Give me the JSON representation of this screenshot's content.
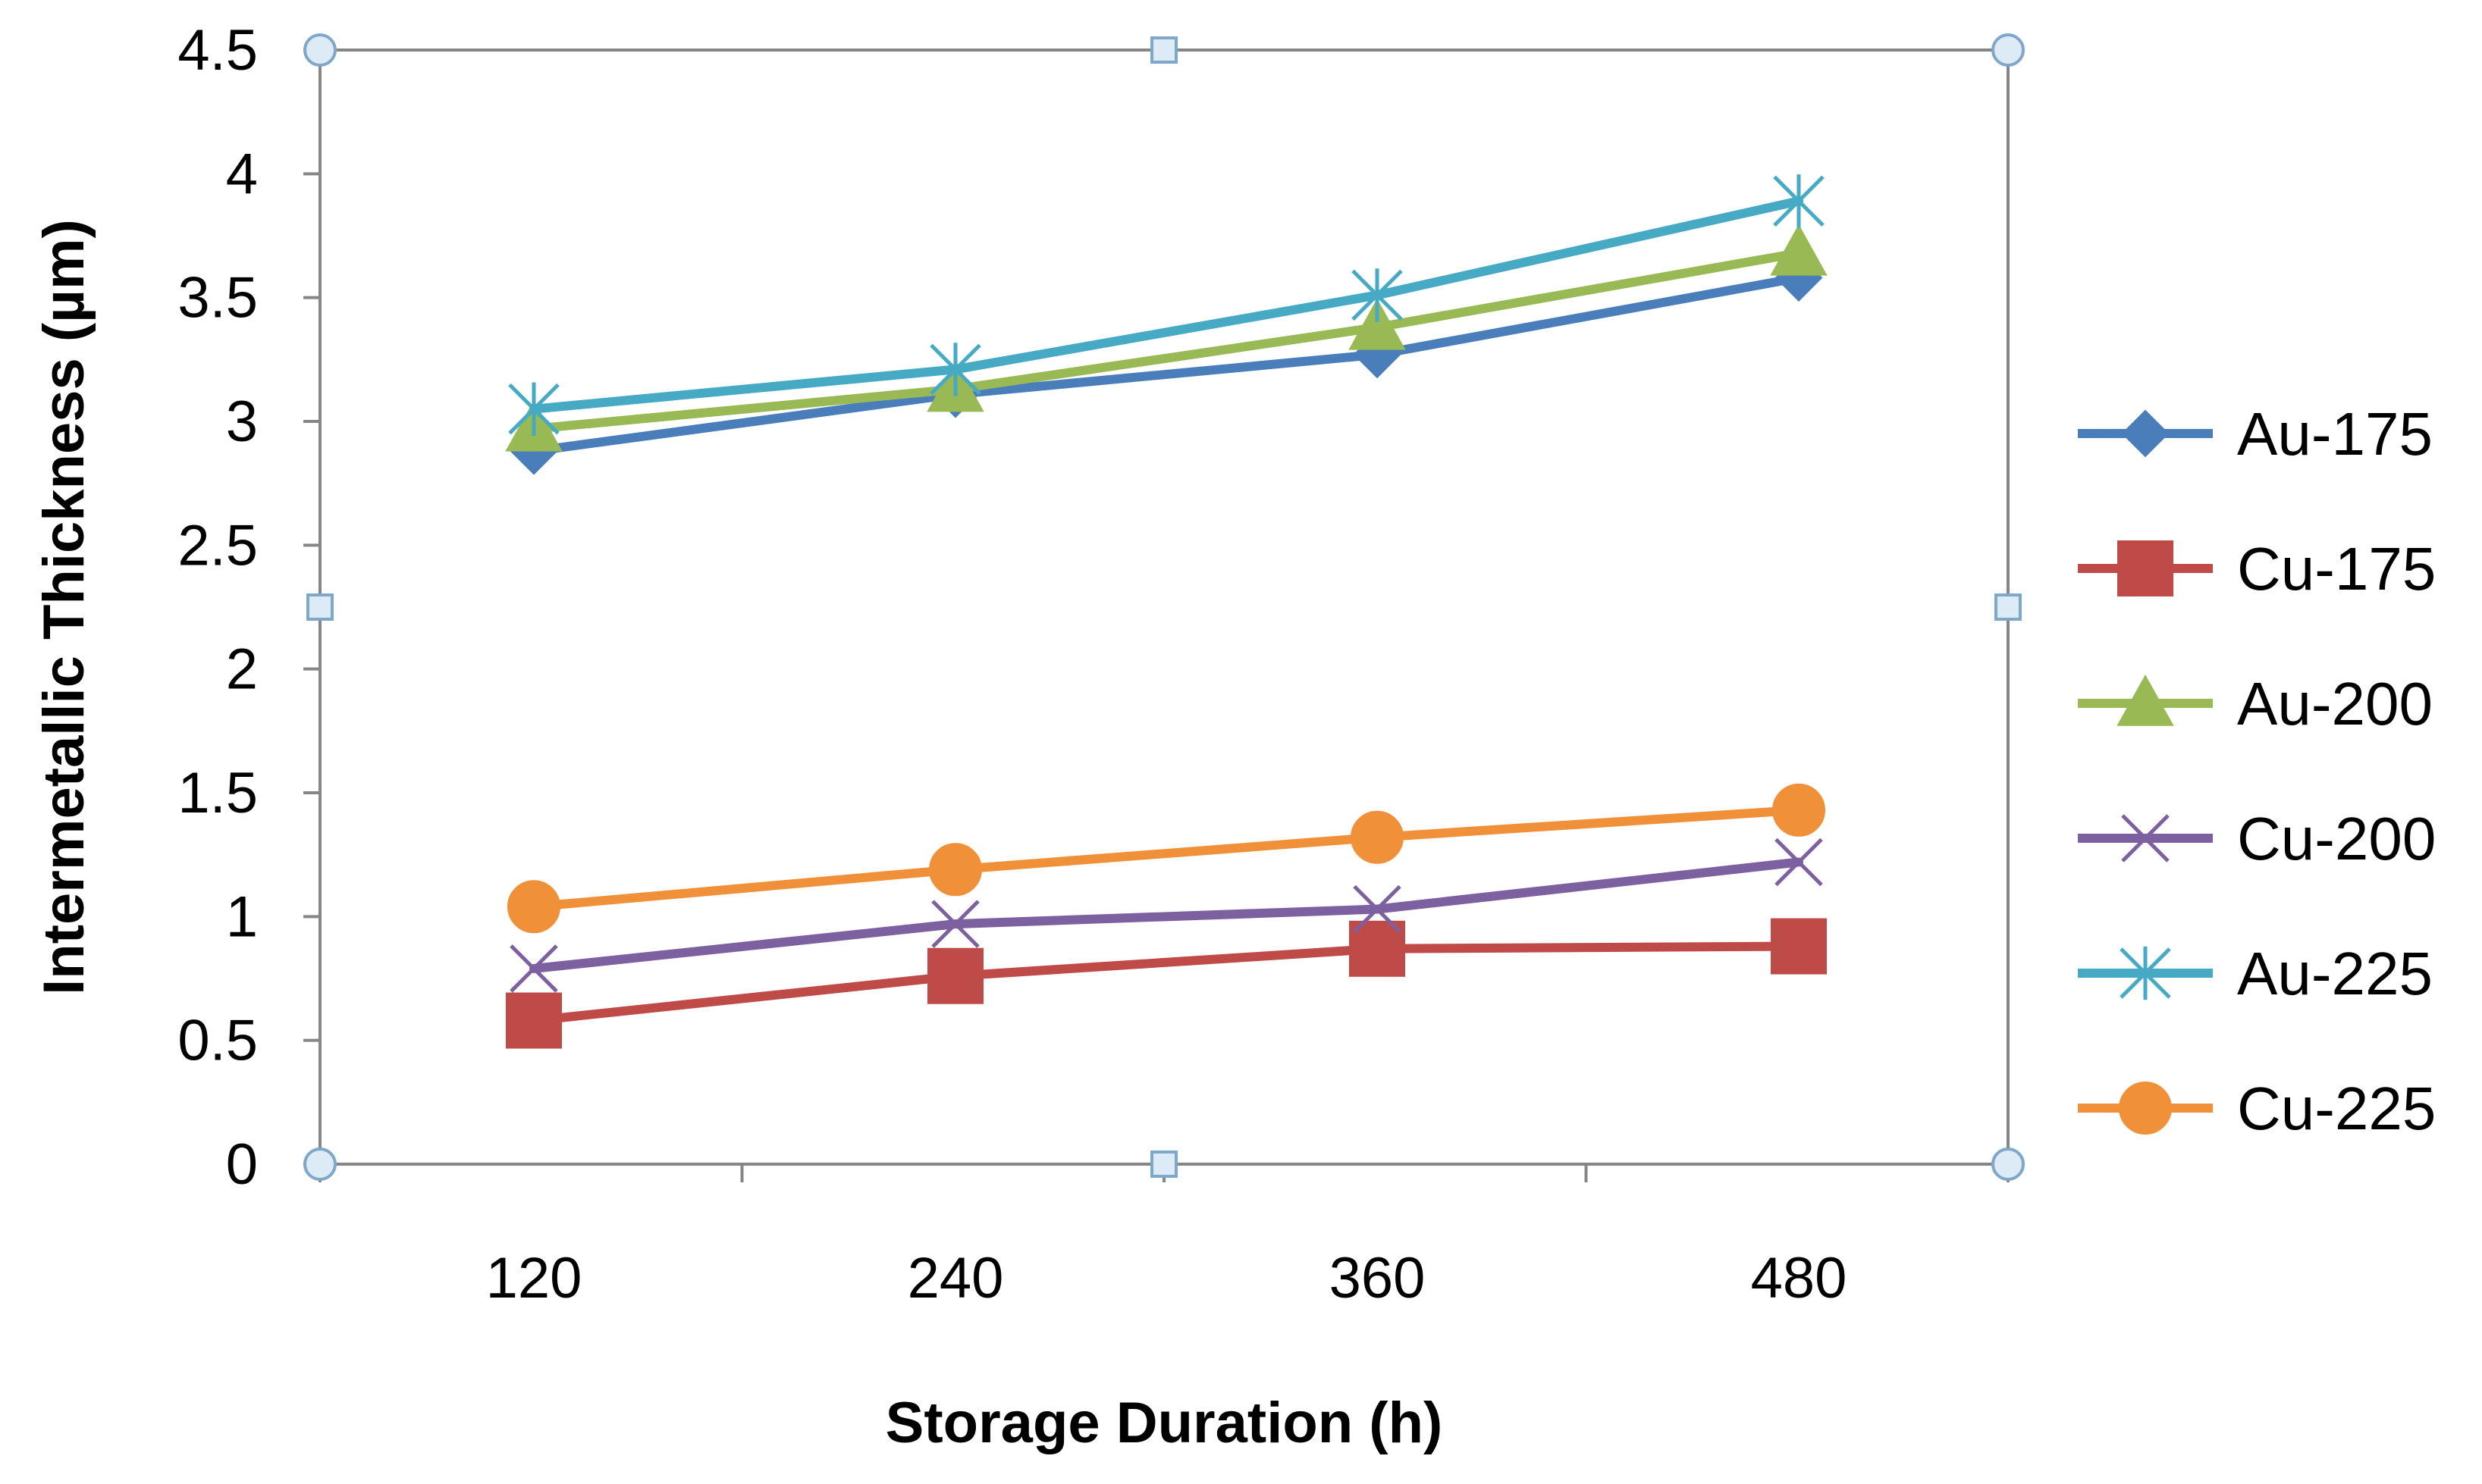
{
  "chart_data": {
    "type": "line",
    "title": "",
    "xlabel": "Storage Duration (h)",
    "ylabel": "Intermetallic Thickness (µm)",
    "categories": [
      "120",
      "240",
      "360",
      "480"
    ],
    "ylim": [
      0,
      4.5
    ],
    "yticks": [
      "0",
      "0.5",
      "1",
      "1.5",
      "2",
      "2.5",
      "3",
      "3.5",
      "4",
      "4.5"
    ],
    "grid": false,
    "legend_position": "right",
    "series": [
      {
        "name": "Au-175",
        "color": "#4A7EBB",
        "marker": "diamond",
        "values": [
          2.88,
          3.11,
          3.27,
          3.58
        ]
      },
      {
        "name": "Cu-175",
        "color": "#BE4B48",
        "marker": "square",
        "values": [
          0.58,
          0.76,
          0.87,
          0.88
        ]
      },
      {
        "name": "Au-200",
        "color": "#98B954",
        "marker": "triangle",
        "values": [
          2.97,
          3.13,
          3.38,
          3.68
        ]
      },
      {
        "name": "Cu-200",
        "color": "#7D60A0",
        "marker": "x",
        "values": [
          0.79,
          0.97,
          1.03,
          1.22
        ]
      },
      {
        "name": "Au-225",
        "color": "#46AAC5",
        "marker": "star",
        "values": [
          3.05,
          3.21,
          3.51,
          3.89
        ]
      },
      {
        "name": "Cu-225",
        "color": "#F0913A",
        "marker": "circle",
        "values": [
          1.04,
          1.19,
          1.32,
          1.43
        ]
      }
    ]
  }
}
